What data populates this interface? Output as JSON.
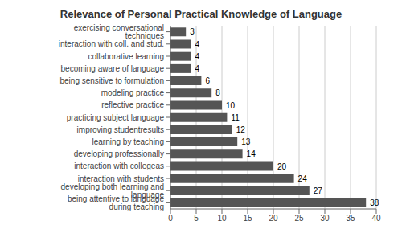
{
  "chart_data": {
    "type": "bar",
    "orientation": "horizontal",
    "title": "Relevance of Personal Practical Knowledge of Language",
    "categories": [
      "being attentive to language during teaching",
      "developing both learning and language",
      "interaction with students",
      "interaction with collegeas",
      "developing professionally",
      "learning by teaching",
      "improving studentresults",
      "practicing subject language",
      "reflective practice",
      "modeling practice",
      "being sensitive to formulation",
      "becoming aware of language",
      "collaborative learning",
      "interaction with coll. and stud.",
      "exercising conversational techniques"
    ],
    "values": [
      38,
      27,
      24,
      20,
      14,
      13,
      12,
      11,
      10,
      8,
      6,
      4,
      4,
      4,
      3
    ],
    "color": "#555555",
    "xlim": [
      0,
      40
    ],
    "xticks": [
      0,
      5,
      10,
      15,
      20,
      25,
      30,
      35,
      40
    ],
    "grid": true,
    "data_labels": true
  }
}
